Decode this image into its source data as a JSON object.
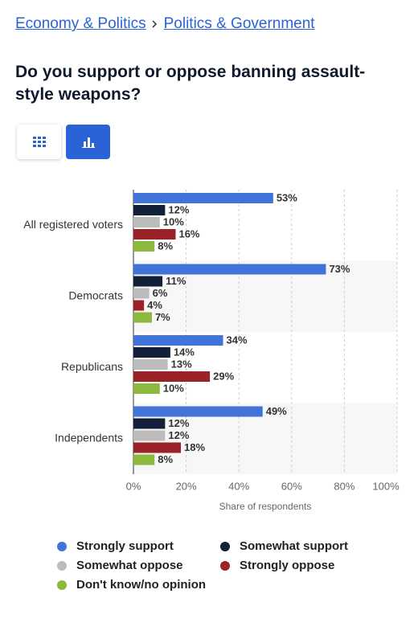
{
  "breadcrumb": [
    "Economy & Politics",
    "Politics & Government"
  ],
  "chart_data": {
    "type": "bar",
    "orientation": "horizontal",
    "title": "Do you support or oppose banning assault-style weapons?",
    "x_label": "Share of respondents",
    "categories": [
      "All registered voters",
      "Democrats",
      "Republicans",
      "Independents"
    ],
    "series": [
      {
        "name": "Strongly support",
        "color": "#4273d8",
        "values": [
          53,
          73,
          34,
          49
        ],
        "value_labels": [
          "53%",
          "73%",
          "34%",
          "49%"
        ]
      },
      {
        "name": "Somewhat support",
        "color": "#13203a",
        "values": [
          12,
          11,
          14,
          12
        ],
        "value_labels": [
          "12%",
          "11%",
          "14%",
          "12%"
        ]
      },
      {
        "name": "Somewhat oppose",
        "color": "#bcbcbc",
        "values": [
          10,
          6,
          13,
          12
        ],
        "value_labels": [
          "10%",
          "6%",
          "13%",
          "12%"
        ]
      },
      {
        "name": "Strongly oppose",
        "color": "#9b2226",
        "values": [
          16,
          4,
          29,
          18
        ],
        "value_labels": [
          "16%",
          "4%",
          "29%",
          "18%"
        ]
      },
      {
        "name": "Don't know/no opinion",
        "color": "#8cb83e",
        "values": [
          8,
          7,
          10,
          8
        ],
        "value_labels": [
          "8%",
          "7%",
          "10%",
          "8%"
        ]
      }
    ],
    "xlim": [
      0,
      100
    ],
    "xticks": [
      {
        "value": 0,
        "label": "0%"
      },
      {
        "value": 20,
        "label": "20%"
      },
      {
        "value": 40,
        "label": "40%"
      },
      {
        "value": 60,
        "label": "60%"
      },
      {
        "value": 80,
        "label": "80%"
      },
      {
        "value": 100,
        "label": "100%"
      }
    ],
    "grid": true
  }
}
